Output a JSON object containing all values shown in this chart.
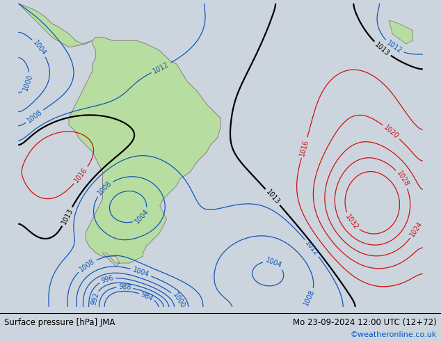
{
  "title_left": "Surface pressure [hPa] JMA",
  "title_right": "Mo 23-09-2024 12:00 UTC (12+72)",
  "copyright": "©weatheronline.co.uk",
  "bg_color": "#ccd5dd",
  "land_color": "#b8dda0",
  "border_color": "#777777",
  "figsize": [
    6.34,
    4.9
  ],
  "dpi": 100,
  "xlim": [
    -95,
    25
  ],
  "ylim": [
    -68,
    22
  ],
  "label_fontsize": 7,
  "footer_fontsize": 8.5,
  "copyright_color": "#0055cc",
  "blue_levels": [
    984,
    988,
    992,
    996,
    1000,
    1004,
    1008,
    1012
  ],
  "red_levels": [
    1016,
    1020,
    1024,
    1028,
    1032
  ],
  "black_levels": [
    1013
  ]
}
